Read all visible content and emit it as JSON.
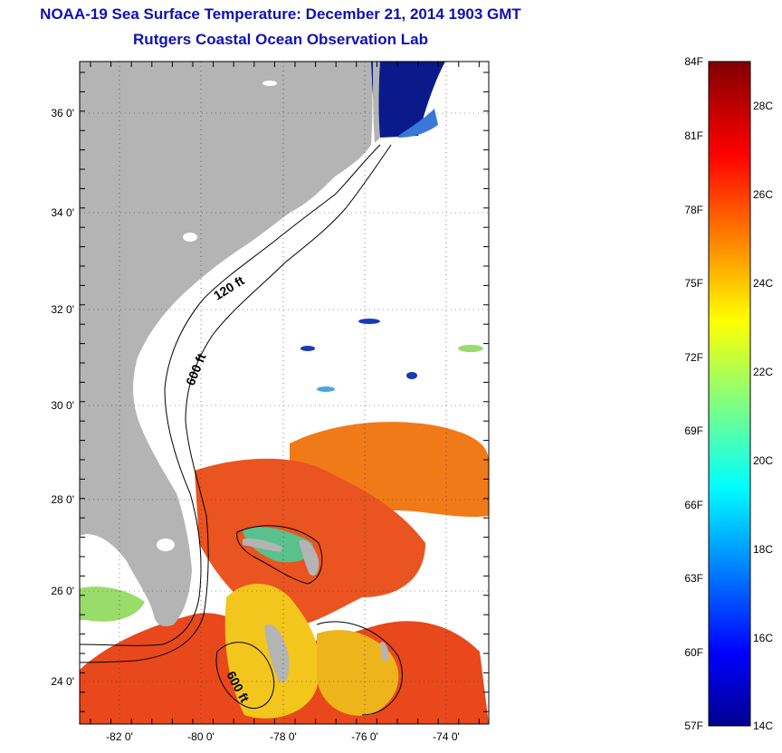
{
  "title": "NOAA-19 Sea Surface Temperature:  December 21, 2014 1903 GMT",
  "subtitle": "Rutgers Coastal Ocean Observation Lab",
  "map": {
    "lat_labels": [
      "36 0'",
      "34 0'",
      "32 0'",
      "30 0'",
      "28 0'",
      "26 0'",
      "24 0'"
    ],
    "lon_labels": [
      "-82 0'",
      "-80 0'",
      "-78 0'",
      "-76 0'",
      "-74 0'"
    ],
    "contours": [
      "120 ft",
      "600 ft",
      "600 ft"
    ]
  },
  "colorbar": {
    "f_labels": [
      "84F",
      "81F",
      "78F",
      "75F",
      "72F",
      "69F",
      "66F",
      "63F",
      "60F",
      "57F"
    ],
    "c_labels": [
      "28C",
      "26C",
      "24C",
      "22C",
      "20C",
      "18C",
      "16C",
      "14C"
    ]
  },
  "colors": {
    "land": "#b4b4b4",
    "grid": "#000000",
    "title": "#1010b4",
    "warm": "#e8481c",
    "hot": "#f07a18",
    "mild": "#f2c61c",
    "cool": "#9adc6a",
    "cold": "#0a1a8a"
  }
}
